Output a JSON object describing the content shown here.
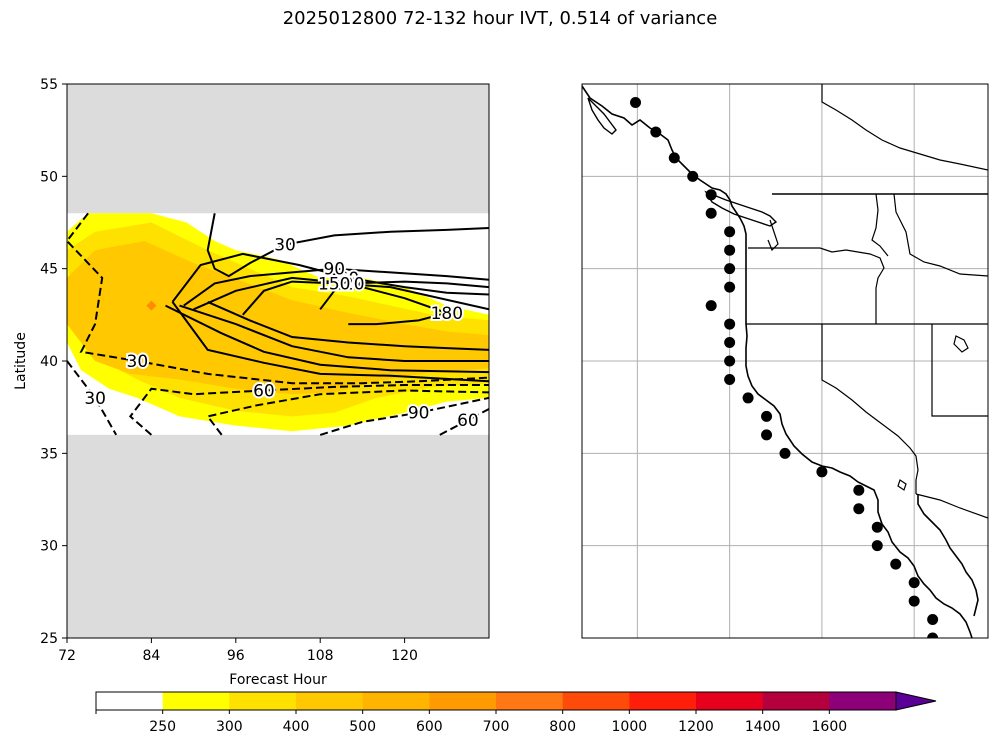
{
  "figure": {
    "title": "2025012800 72-132 hour IVT, 0.514 of variance"
  },
  "chart_data": [
    {
      "type": "contour",
      "panel": "left",
      "xlabel": "Forecast Hour",
      "ylabel": "Latitude",
      "xlim": [
        72,
        132
      ],
      "ylim": [
        25,
        55
      ],
      "xticks": [
        72,
        84,
        96,
        108,
        120
      ],
      "yticks": [
        25,
        30,
        35,
        40,
        45,
        50,
        55
      ],
      "data_domain": {
        "lat": [
          36,
          48
        ]
      },
      "missing_color": "#dcdcdc",
      "fill_levels": [
        {
          "threshold": 250,
          "color": "#ffff00",
          "polygon": [
            [
              72,
              47
            ],
            [
              75,
              48
            ],
            [
              84,
              48
            ],
            [
              89,
              47.5
            ],
            [
              93,
              46.5
            ],
            [
              96,
              46
            ],
            [
              102,
              45.5
            ],
            [
              108,
              44.5
            ],
            [
              114,
              44.5
            ],
            [
              120,
              44
            ],
            [
              126,
              43
            ],
            [
              132,
              42.5
            ],
            [
              132,
              38
            ],
            [
              126,
              37.8
            ],
            [
              120,
              37.2
            ],
            [
              112,
              36.5
            ],
            [
              104,
              36.2
            ],
            [
              96,
              36.5
            ],
            [
              88,
              37
            ],
            [
              82,
              38
            ],
            [
              78,
              38.5
            ],
            [
              74,
              39.5
            ],
            [
              72,
              41
            ]
          ]
        },
        {
          "threshold": 300,
          "color": "#ffe100",
          "polygon": [
            [
              72,
              46
            ],
            [
              76,
              47
            ],
            [
              84,
              47.5
            ],
            [
              92,
              46
            ],
            [
              98,
              45
            ],
            [
              104,
              44
            ],
            [
              112,
              43.5
            ],
            [
              118,
              43
            ],
            [
              124,
              42.5
            ],
            [
              132,
              42.2
            ],
            [
              132,
              38.8
            ],
            [
              124,
              38.6
            ],
            [
              116,
              38
            ],
            [
              110,
              37.2
            ],
            [
              104,
              37
            ],
            [
              96,
              37.3
            ],
            [
              88,
              38
            ],
            [
              82,
              39
            ],
            [
              77,
              40
            ],
            [
              73,
              41.5
            ]
          ]
        },
        {
          "threshold": 400,
          "color": "#ffc800",
          "polygon": [
            [
              72,
              44.5
            ],
            [
              76,
              46
            ],
            [
              83,
              46.5
            ],
            [
              90,
              45.3
            ],
            [
              97,
              44.3
            ],
            [
              104,
              43.3
            ],
            [
              112,
              42.6
            ],
            [
              120,
              42
            ],
            [
              126,
              41.6
            ],
            [
              132,
              41.4
            ],
            [
              132,
              39.6
            ],
            [
              124,
              39.4
            ],
            [
              116,
              38.9
            ],
            [
              110,
              38.3
            ],
            [
              104,
              38.2
            ],
            [
              96,
              38.5
            ],
            [
              88,
              39
            ],
            [
              81,
              39.3
            ],
            [
              76,
              40
            ],
            [
              72,
              42
            ]
          ]
        }
      ],
      "contours": [
        {
          "value": 30,
          "label": "30",
          "style": "solid",
          "points": [
            [
              93,
              48
            ],
            [
              92,
              46
            ],
            [
              93,
              45
            ],
            [
              95,
              44.6
            ],
            [
              98,
              45.3
            ],
            [
              103,
              46.3
            ],
            [
              110,
              46.8
            ],
            [
              118,
              47
            ],
            [
              126,
              47.1
            ],
            [
              132,
              47.2
            ]
          ]
        },
        {
          "value": 60,
          "label": "60",
          "style": "solid",
          "points": [
            [
              87,
              43.2
            ],
            [
              91,
              45.2
            ],
            [
              97,
              45.8
            ],
            [
              105,
              45.2
            ],
            [
              112,
              44.5
            ],
            [
              120,
              44
            ],
            [
              126,
              43.7
            ],
            [
              132,
              43.6
            ]
          ]
        },
        {
          "value": 90,
          "label": "90",
          "style": "solid",
          "points": [
            [
              88.6,
              43
            ],
            [
              93,
              44.2
            ],
            [
              98,
              44.6
            ],
            [
              104,
              44.8
            ],
            [
              110,
              45
            ],
            [
              118,
              44.8
            ],
            [
              126,
              44.6
            ],
            [
              132,
              44.4
            ]
          ]
        },
        {
          "value": 120,
          "label": "120",
          "style": "solid",
          "points": [
            [
              90,
              42.8
            ],
            [
              96,
              43.8
            ],
            [
              104,
              44.5
            ],
            [
              112,
              44.2
            ],
            [
              120,
              44.3
            ],
            [
              126,
              44.2
            ],
            [
              132,
              44
            ]
          ]
        },
        {
          "value": 150,
          "label": "150",
          "style": "solid",
          "points": [
            [
              97,
              42.5
            ],
            [
              100,
              43.8
            ],
            [
              104,
              44.3
            ],
            [
              110,
              44.2
            ],
            [
              118,
              44
            ],
            [
              132,
              42.8
            ]
          ]
        },
        {
          "value": 180,
          "label": "180",
          "style": "solid",
          "points": [
            [
              108,
              42.8
            ],
            [
              110,
              43.8
            ],
            [
              114,
              44
            ],
            [
              120,
              43.4
            ],
            [
              126,
              42.6
            ],
            [
              122,
              42.2
            ],
            [
              116,
              42
            ],
            [
              112,
              42
            ]
          ]
        },
        {
          "value": 150,
          "label": "",
          "style": "solid",
          "points": [
            [
              92,
              43.2
            ],
            [
              98,
              42.2
            ],
            [
              104,
              41.3
            ],
            [
              112,
              41
            ],
            [
              120,
              40.8
            ],
            [
              126,
              40.7
            ],
            [
              132,
              40.6
            ]
          ]
        },
        {
          "value": 120,
          "label": "",
          "style": "solid",
          "points": [
            [
              88,
              43
            ],
            [
              96,
              42
            ],
            [
              104,
              40.8
            ],
            [
              112,
              40.2
            ],
            [
              120,
              40
            ],
            [
              132,
              40
            ]
          ]
        },
        {
          "value": 90,
          "label": "",
          "style": "solid",
          "points": [
            [
              86,
              43
            ],
            [
              94,
              41.5
            ],
            [
              100,
              40.5
            ],
            [
              108,
              39.8
            ],
            [
              118,
              39.5
            ],
            [
              132,
              39.4
            ]
          ]
        },
        {
          "value": 60,
          "label": "",
          "style": "solid",
          "points": [
            [
              87,
              43.2
            ],
            [
              92,
              40.6
            ],
            [
              100,
              39.9
            ],
            [
              108,
              39.3
            ],
            [
              118,
              39.2
            ],
            [
              132,
              38.9
            ]
          ]
        },
        {
          "value": -30,
          "label": "30",
          "style": "dashed",
          "points": [
            [
              75,
              48
            ],
            [
              72,
              46.5
            ],
            [
              77,
              44.5
            ],
            [
              76,
              42
            ],
            [
              74,
              40.5
            ],
            [
              82,
              40
            ],
            [
              92,
              39.3
            ],
            [
              104,
              38.8
            ],
            [
              114,
              38.8
            ],
            [
              122,
              38.9
            ],
            [
              132,
              39.1
            ]
          ]
        },
        {
          "value": -30,
          "label": "30",
          "style": "dashed",
          "points": [
            [
              72,
              40
            ],
            [
              76,
              38
            ],
            [
              79,
              36
            ]
          ]
        },
        {
          "value": -60,
          "label": "60",
          "style": "dashed",
          "points": [
            [
              84,
              36
            ],
            [
              81,
              37
            ],
            [
              84,
              38.5
            ],
            [
              90,
              38.2
            ],
            [
              100,
              38.4
            ],
            [
              110,
              38.6
            ],
            [
              120,
              38.7
            ],
            [
              132,
              38.7
            ]
          ]
        },
        {
          "value": -60,
          "label": "",
          "style": "dashed",
          "points": [
            [
              94,
              36
            ],
            [
              92,
              37
            ],
            [
              99,
              37.6
            ],
            [
              108,
              38.2
            ],
            [
              120,
              38.4
            ],
            [
              132,
              38.3
            ]
          ]
        },
        {
          "value": -90,
          "label": "90",
          "style": "dashed",
          "points": [
            [
              108,
              36
            ],
            [
              114,
              36.7
            ],
            [
              122,
              37.2
            ],
            [
              132,
              38
            ]
          ]
        },
        {
          "value": -60,
          "label": "60",
          "style": "dashed",
          "points": [
            [
              125,
              36
            ],
            [
              129,
              36.8
            ],
            [
              132,
              37.4
            ]
          ]
        }
      ],
      "marker": {
        "hour": 84,
        "lat": 43,
        "color": "#ff8c00"
      }
    },
    {
      "type": "map",
      "panel": "right",
      "projection": "PlateCarree",
      "lon_range": [
        -135,
        -113
      ],
      "lat_range": [
        25,
        55
      ],
      "gridlines": {
        "lons": [
          -132,
          -127,
          -122,
          -117
        ],
        "lats": [
          30,
          35,
          40,
          45,
          50
        ]
      },
      "points": [
        [
          -132.1,
          54
        ],
        [
          -131,
          52.4
        ],
        [
          -130,
          51
        ],
        [
          -129,
          50
        ],
        [
          -128,
          49
        ],
        [
          -128,
          48
        ],
        [
          -127,
          47
        ],
        [
          -127,
          46
        ],
        [
          -127,
          45
        ],
        [
          -127,
          44
        ],
        [
          -128,
          43
        ],
        [
          -127,
          42
        ],
        [
          -127,
          41
        ],
        [
          -127,
          40
        ],
        [
          -127,
          39
        ],
        [
          -126,
          38
        ],
        [
          -125,
          37
        ],
        [
          -125,
          36
        ],
        [
          -124,
          35
        ],
        [
          -122,
          34
        ],
        [
          -120,
          33
        ],
        [
          -120,
          32
        ],
        [
          -119,
          31
        ],
        [
          -119,
          30
        ],
        [
          -118,
          29
        ],
        [
          -117,
          28
        ],
        [
          -117,
          27
        ],
        [
          -116,
          26
        ],
        [
          -116,
          25
        ]
      ]
    }
  ],
  "colorbar": {
    "ticks": [
      "250",
      "300",
      "400",
      "500",
      "600",
      "700",
      "800",
      "1000",
      "1200",
      "1400",
      "1600"
    ],
    "colors": [
      "#ffffff",
      "#ffff00",
      "#ffe100",
      "#ffc800",
      "#ffb400",
      "#ff9b00",
      "#ff7814",
      "#ff4b0a",
      "#ff1e0a",
      "#e6001e",
      "#b4003c",
      "#8c0078",
      "#5a0096"
    ]
  }
}
